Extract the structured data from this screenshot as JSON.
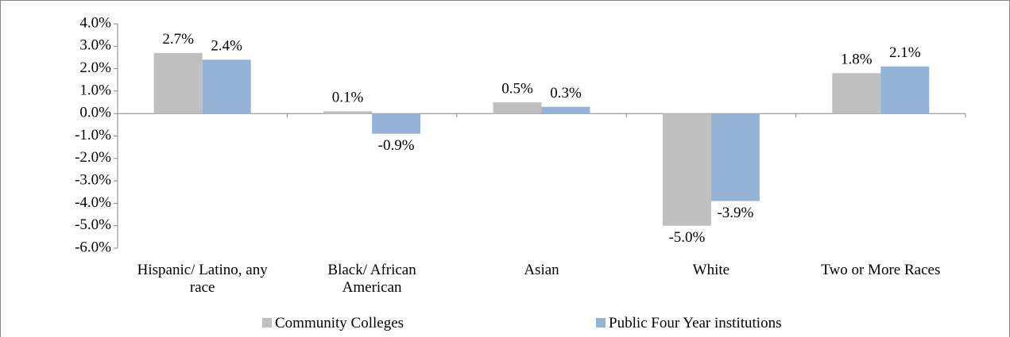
{
  "chart_data": {
    "type": "bar",
    "categories": [
      "Hispanic/ Latino, any race",
      "Black/ African American",
      "Asian",
      "White",
      "Two or More Races"
    ],
    "series": [
      {
        "name": "Community Colleges",
        "color": "#bfbfbf",
        "values": [
          2.7,
          0.1,
          0.5,
          -5.0,
          1.8
        ],
        "value_labels": [
          "2.7%",
          "0.1%",
          "0.5%",
          "-5.0%",
          "1.8%"
        ]
      },
      {
        "name": "Public Four Year institutions",
        "color": "#95b3d7",
        "values": [
          2.4,
          -0.9,
          0.3,
          -3.9,
          2.1
        ],
        "value_labels": [
          "2.4%",
          "-0.9%",
          "0.3%",
          "-3.9%",
          "2.1%"
        ]
      }
    ],
    "ylim": [
      -6,
      4
    ],
    "yticks": [
      {
        "value": 4,
        "label": "4.0%"
      },
      {
        "value": 3,
        "label": "3.0%"
      },
      {
        "value": 2,
        "label": "2.0%"
      },
      {
        "value": 1,
        "label": "1.0%"
      },
      {
        "value": 0,
        "label": "0.0%"
      },
      {
        "value": -1,
        "label": "-1.0%"
      },
      {
        "value": -2,
        "label": "-2.0%"
      },
      {
        "value": -3,
        "label": "-3.0%"
      },
      {
        "value": -4,
        "label": "-4.0%"
      },
      {
        "value": -5,
        "label": "-5.0%"
      },
      {
        "value": -6,
        "label": "-6.0%"
      }
    ],
    "grid": false,
    "legend": "bottom"
  }
}
